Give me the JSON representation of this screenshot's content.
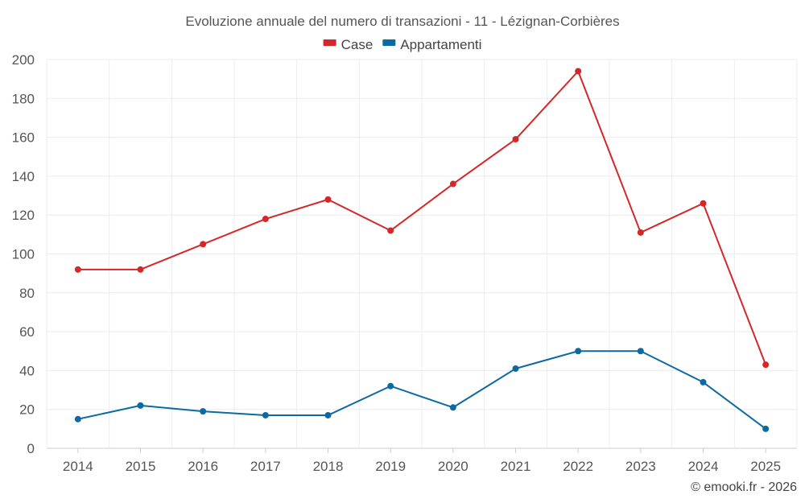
{
  "chart_data": {
    "type": "line",
    "title": "Evoluzione annuale del numero di transazioni - 11 - Lézignan-Corbières",
    "categories": [
      "2014",
      "2015",
      "2016",
      "2017",
      "2018",
      "2019",
      "2020",
      "2021",
      "2022",
      "2023",
      "2024",
      "2025"
    ],
    "series": [
      {
        "name": "Case",
        "color": "#d62728",
        "values": [
          92,
          92,
          105,
          118,
          128,
          112,
          136,
          159,
          194,
          111,
          126,
          43
        ]
      },
      {
        "name": "Appartamenti",
        "color": "#0b6aa2",
        "values": [
          15,
          22,
          19,
          17,
          17,
          32,
          21,
          41,
          50,
          50,
          34,
          10
        ]
      }
    ],
    "ylim": [
      0,
      200
    ],
    "yticks": [
      0,
      20,
      40,
      60,
      80,
      100,
      120,
      140,
      160,
      180,
      200
    ],
    "grid": true,
    "legend_position": "top-center",
    "xlabel": "",
    "ylabel": ""
  },
  "credit": "© emooki.fr - 2026"
}
